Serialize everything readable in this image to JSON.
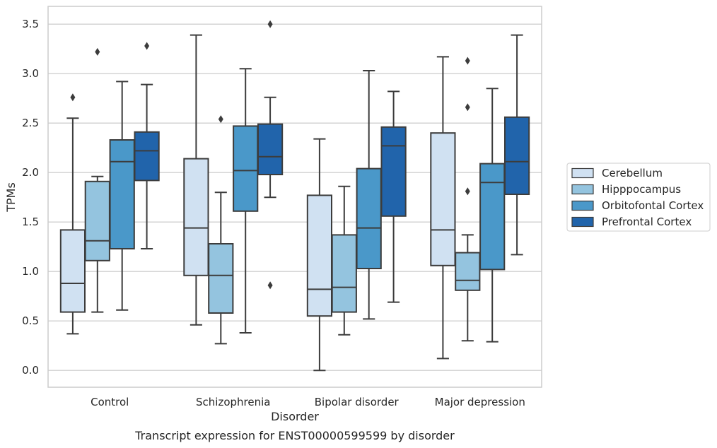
{
  "chart_data": {
    "type": "box",
    "caption": "Transcript expression for ENST00000599599 by disorder",
    "xlabel": "Disorder",
    "ylabel": "TPMs",
    "ylim": [
      -0.17,
      3.68
    ],
    "yticks": [
      "0.0",
      "0.5",
      "1.0",
      "1.5",
      "2.0",
      "2.5",
      "3.0",
      "3.5"
    ],
    "grid": true,
    "legend_position": "right",
    "categories": [
      "Control",
      "Schizophrenia",
      "Bipolar disorder",
      "Major depression"
    ],
    "series": [
      {
        "name": "Cerebellum",
        "color": "#d0e1f2",
        "boxes": [
          {
            "whisker_low": 0.37,
            "q1": 0.59,
            "median": 0.88,
            "q3": 1.42,
            "whisker_high": 2.55,
            "outliers": [
              2.76
            ]
          },
          {
            "whisker_low": 0.46,
            "q1": 0.96,
            "median": 1.44,
            "q3": 2.14,
            "whisker_high": 3.39,
            "outliers": []
          },
          {
            "whisker_low": 0.0,
            "q1": 0.55,
            "median": 0.82,
            "q3": 1.77,
            "whisker_high": 2.34,
            "outliers": []
          },
          {
            "whisker_low": 0.12,
            "q1": 1.06,
            "median": 1.42,
            "q3": 2.4,
            "whisker_high": 3.17,
            "outliers": []
          }
        ]
      },
      {
        "name": "Hipppocampus",
        "color": "#94c4df",
        "boxes": [
          {
            "whisker_low": 0.59,
            "q1": 1.11,
            "median": 1.31,
            "q3": 1.91,
            "whisker_high": 1.96,
            "outliers": [
              3.22
            ]
          },
          {
            "whisker_low": 0.27,
            "q1": 0.58,
            "median": 0.96,
            "q3": 1.28,
            "whisker_high": 1.8,
            "outliers": [
              2.54
            ]
          },
          {
            "whisker_low": 0.36,
            "q1": 0.59,
            "median": 0.84,
            "q3": 1.37,
            "whisker_high": 1.86,
            "outliers": []
          },
          {
            "whisker_low": 0.3,
            "q1": 0.81,
            "median": 0.91,
            "q3": 1.19,
            "whisker_high": 1.37,
            "outliers": [
              1.81,
              2.66,
              3.13
            ]
          }
        ]
      },
      {
        "name": "Orbitofontal Cortex",
        "color": "#4a98c9",
        "boxes": [
          {
            "whisker_low": 0.61,
            "q1": 1.23,
            "median": 2.11,
            "q3": 2.33,
            "whisker_high": 2.92,
            "outliers": []
          },
          {
            "whisker_low": 0.38,
            "q1": 1.61,
            "median": 2.02,
            "q3": 2.47,
            "whisker_high": 3.05,
            "outliers": []
          },
          {
            "whisker_low": 0.52,
            "q1": 1.03,
            "median": 1.44,
            "q3": 2.04,
            "whisker_high": 3.03,
            "outliers": []
          },
          {
            "whisker_low": 0.29,
            "q1": 1.02,
            "median": 1.9,
            "q3": 2.09,
            "whisker_high": 2.85,
            "outliers": []
          }
        ]
      },
      {
        "name": "Prefrontal Cortex",
        "color": "#2164ab",
        "boxes": [
          {
            "whisker_low": 1.23,
            "q1": 1.92,
            "median": 2.22,
            "q3": 2.41,
            "whisker_high": 2.89,
            "outliers": [
              3.28
            ]
          },
          {
            "whisker_low": 1.75,
            "q1": 1.98,
            "median": 2.16,
            "q3": 2.49,
            "whisker_high": 2.76,
            "outliers": [
              0.86,
              3.5
            ]
          },
          {
            "whisker_low": 0.69,
            "q1": 1.56,
            "median": 2.27,
            "q3": 2.46,
            "whisker_high": 2.82,
            "outliers": []
          },
          {
            "whisker_low": 1.17,
            "q1": 1.78,
            "median": 2.11,
            "q3": 2.56,
            "whisker_high": 3.39,
            "outliers": []
          }
        ]
      }
    ]
  }
}
